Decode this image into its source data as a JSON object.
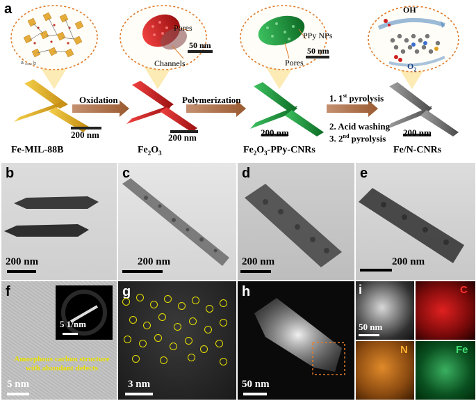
{
  "panel_a": {
    "label": "a",
    "steps": [
      {
        "name": "Fe-MIL-88B",
        "scale": "200 nm"
      },
      {
        "name_main": "Fe",
        "name_sub1": "2",
        "name_mid": "O",
        "name_sub2": "3",
        "scale": "200 nm"
      },
      {
        "name_main": "Fe",
        "name_sub1": "2",
        "name_mid": "O",
        "name_sub2": "3",
        "name_tail": "-PPy-CNRs",
        "scale": "200 nm"
      },
      {
        "name": "Fe/N-CNRs",
        "scale": "200 nm"
      }
    ],
    "arrows": {
      "oxidation": "Oxidation",
      "polymerization": "Polymerization",
      "pyro1_pre": "1. 1",
      "pyro1_sup": "st",
      "pyro1_post": " pyrolysis",
      "acid": "2. Acid washing",
      "pyro2_pre": "3. 2",
      "pyro2_sup": "nd",
      "pyro2_post": " pyrolysis"
    },
    "bubble2": {
      "pores": "Pores",
      "channels": "Channels",
      "scale": "50 nm"
    },
    "bubble3": {
      "ppy": "PPy NPs",
      "pores": "Pores",
      "scale": "50 nm"
    },
    "bubble4": {
      "oh_main": "OH",
      "oh_sup": "-",
      "o2_main": "O",
      "o2_sub": "2"
    }
  },
  "panels": {
    "b": {
      "label": "b",
      "scale": "200 nm"
    },
    "c": {
      "label": "c",
      "scale": "200 nm"
    },
    "d": {
      "label": "d",
      "scale": "200 nm"
    },
    "e": {
      "label": "e",
      "scale": "200 nm"
    },
    "f": {
      "label": "f",
      "scale": "5 nm",
      "inset_scale": "5 1/nm",
      "note_line1": "Amorphous carbon structure",
      "note_line2": "with abundant defects"
    },
    "g": {
      "label": "g",
      "scale": "3 nm"
    },
    "h": {
      "label": "h",
      "scale": "50 nm"
    },
    "i": {
      "label": "i",
      "scale": "50 nm",
      "map_c": "C",
      "map_n": "N",
      "map_fe": "Fe"
    }
  },
  "colors": {
    "bubble_border": "#e07a2a",
    "fe_mil": "#e5b21c",
    "fe2o3": "#d42020",
    "ppy": "#1f9a3a",
    "cnr": "#7a7a7a",
    "arrow": "#b87a4a",
    "circle": "#e8e000"
  }
}
